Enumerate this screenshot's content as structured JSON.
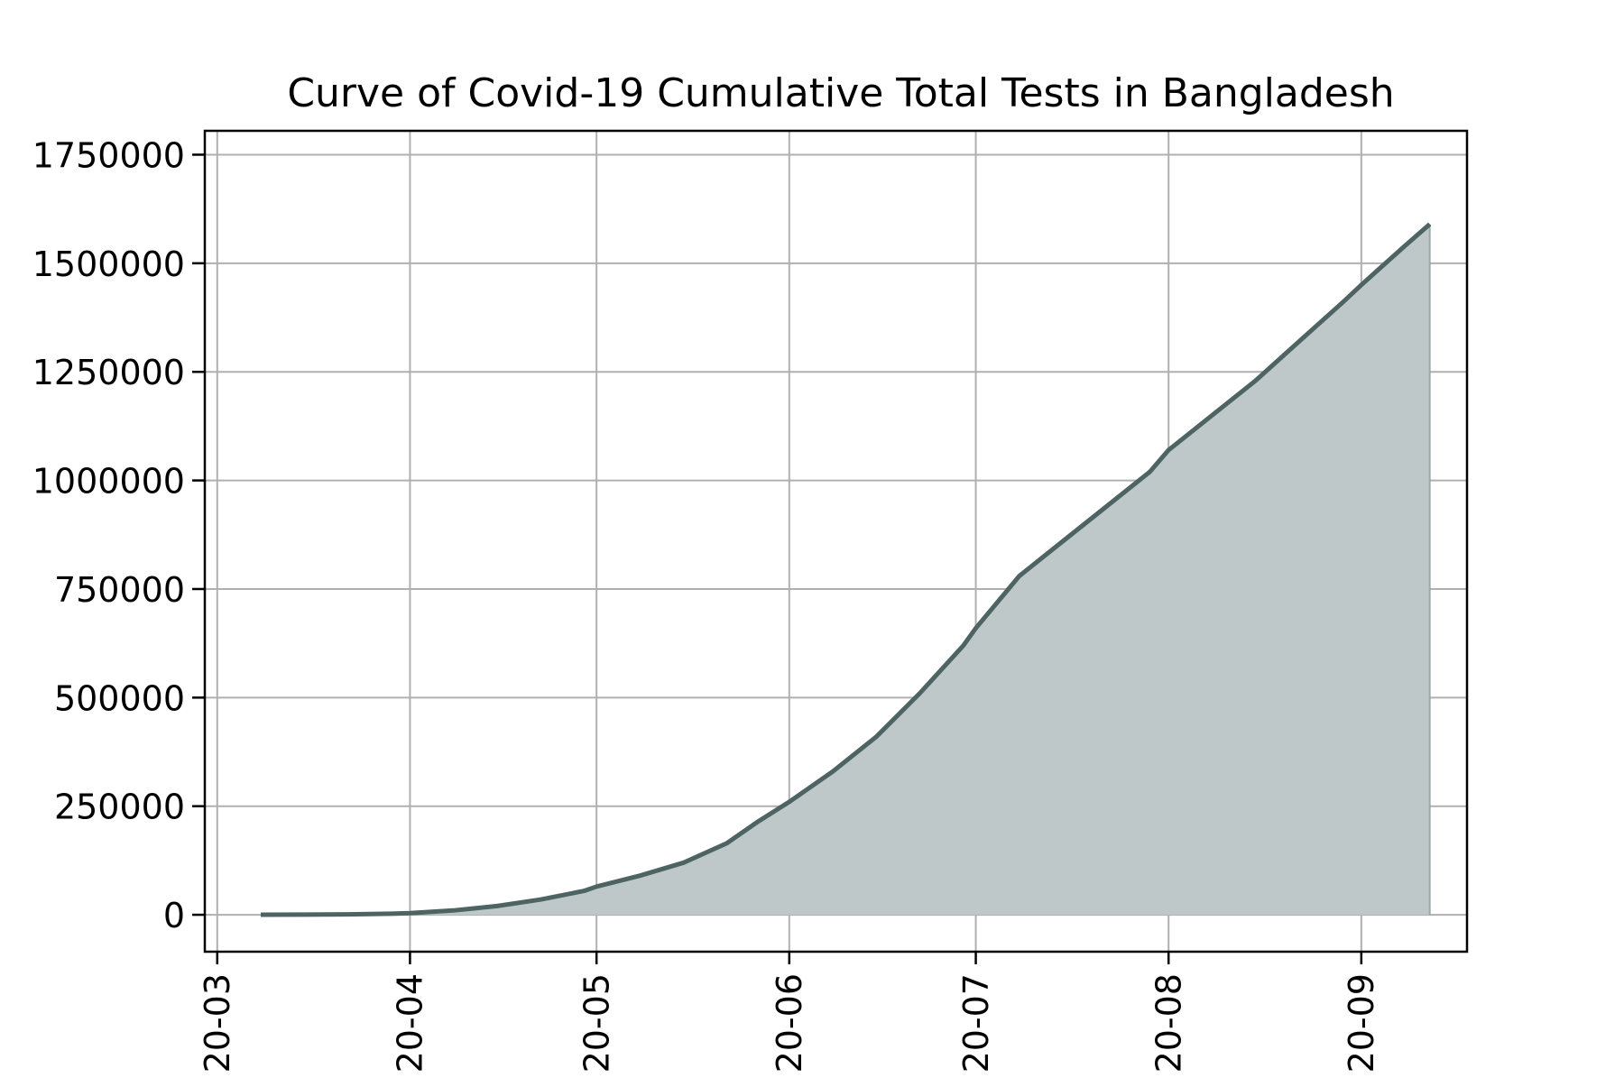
{
  "chart_data": {
    "type": "area",
    "title": "Curve of Covid-19 Cumulative Total Tests in Bangladesh",
    "xlabel": "",
    "ylabel": "",
    "x_tick_labels": [
      "20-03",
      "20-04",
      "20-05",
      "20-06",
      "20-07",
      "20-08",
      "20-09"
    ],
    "x_tick_dates": [
      "2020-03-01",
      "2020-04-01",
      "2020-05-01",
      "2020-06-01",
      "2020-07-01",
      "2020-08-01",
      "2020-09-01"
    ],
    "y_tick_labels": [
      "0",
      "250000",
      "500000",
      "750000",
      "1000000",
      "1250000",
      "1500000",
      "1750000"
    ],
    "y_tick_values": [
      0,
      250000,
      500000,
      750000,
      1000000,
      1250000,
      1500000,
      1750000
    ],
    "xlim": [
      "2020-02-28",
      "2020-09-18"
    ],
    "ylim": [
      -85000,
      1805000
    ],
    "grid": true,
    "legend": "none",
    "colors": {
      "line": "#4d6462",
      "fill": "#bfc8c8",
      "grid": "#b0b0b0"
    },
    "series": [
      {
        "x": [
          "2020-03-08",
          "2020-03-15",
          "2020-03-22",
          "2020-03-29",
          "2020-04-01",
          "2020-04-08",
          "2020-04-15",
          "2020-04-22",
          "2020-04-29",
          "2020-05-01",
          "2020-05-08",
          "2020-05-15",
          "2020-05-22",
          "2020-05-27",
          "2020-06-01",
          "2020-06-08",
          "2020-06-15",
          "2020-06-22",
          "2020-06-29",
          "2020-07-01",
          "2020-07-08",
          "2020-07-15",
          "2020-07-22",
          "2020-07-29",
          "2020-08-01",
          "2020-08-08",
          "2020-08-15",
          "2020-08-22",
          "2020-08-29",
          "2020-09-01",
          "2020-09-08",
          "2020-09-12"
        ],
        "values": [
          100,
          400,
          900,
          2500,
          3900,
          10000,
          20000,
          35000,
          55000,
          65000,
          90000,
          120000,
          165000,
          215000,
          260000,
          330000,
          410000,
          510000,
          620000,
          660000,
          780000,
          860000,
          940000,
          1020000,
          1070000,
          1150000,
          1230000,
          1320000,
          1410000,
          1450000,
          1540000,
          1590000
        ]
      }
    ]
  }
}
